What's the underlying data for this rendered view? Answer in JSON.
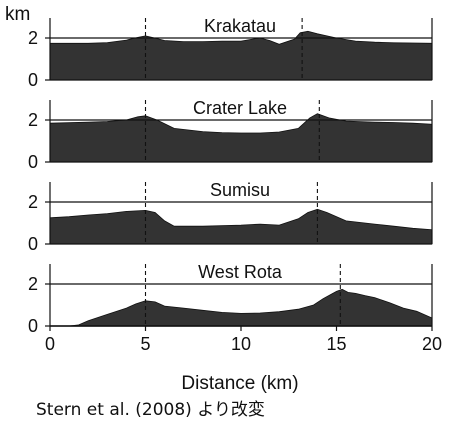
{
  "chart_data": {
    "type": "area",
    "y_unit_label": "km",
    "xlabel": "Distance (km)",
    "xlim": [
      0,
      20
    ],
    "x_ticks": [
      0,
      5,
      10,
      15,
      20
    ],
    "ylim": [
      0,
      2.6
    ],
    "y_ticks": [
      0,
      2
    ],
    "reference_level": 2,
    "fill_color": "#333333",
    "panels": [
      {
        "name": "Krakatau",
        "dashed_x": [
          5,
          13.2
        ],
        "profile": {
          "x": [
            0,
            1,
            2,
            3,
            4,
            4.6,
            5,
            5.4,
            6,
            7,
            8,
            9,
            10,
            10.6,
            11,
            11.5,
            12,
            12.8,
            13.1,
            13.5,
            14,
            15,
            16,
            17,
            18,
            19,
            20
          ],
          "y": [
            1.75,
            1.75,
            1.75,
            1.78,
            1.9,
            2.03,
            2.1,
            2.02,
            1.88,
            1.83,
            1.83,
            1.85,
            1.85,
            1.95,
            2.0,
            1.88,
            1.7,
            1.95,
            2.25,
            2.32,
            2.2,
            2.0,
            1.85,
            1.8,
            1.77,
            1.76,
            1.75
          ]
        }
      },
      {
        "name": "Crater Lake",
        "dashed_x": [
          5,
          14.1
        ],
        "profile": {
          "x": [
            0,
            1,
            2,
            3,
            4,
            4.6,
            5,
            5.6,
            6.5,
            8,
            9,
            10,
            11,
            12,
            13,
            13.6,
            14,
            14.6,
            15.5,
            17,
            18,
            19,
            20
          ],
          "y": [
            1.85,
            1.87,
            1.9,
            1.93,
            2.0,
            2.15,
            2.2,
            2.0,
            1.6,
            1.45,
            1.4,
            1.38,
            1.38,
            1.43,
            1.6,
            2.1,
            2.3,
            2.1,
            1.95,
            1.9,
            1.88,
            1.85,
            1.8
          ]
        }
      },
      {
        "name": "Sumisu",
        "dashed_x": [
          5,
          14
        ],
        "profile": {
          "x": [
            0,
            1,
            2,
            3,
            4,
            5,
            5.5,
            6,
            6.5,
            8,
            10,
            11,
            12,
            13,
            13.5,
            14,
            14.5,
            15.5,
            17,
            18,
            19,
            20
          ],
          "y": [
            1.25,
            1.3,
            1.38,
            1.45,
            1.55,
            1.6,
            1.5,
            1.1,
            0.85,
            0.85,
            0.9,
            0.95,
            0.9,
            1.2,
            1.5,
            1.65,
            1.5,
            1.1,
            0.95,
            0.85,
            0.75,
            0.68
          ]
        }
      },
      {
        "name": "West Rota",
        "dashed_x": [
          5,
          15.2
        ],
        "profile": {
          "x": [
            1,
            1.5,
            2,
            3,
            4,
            4.5,
            5,
            5.5,
            6,
            7,
            8,
            9,
            10,
            11,
            12,
            13,
            13.8,
            14.3,
            14.7,
            15,
            15.3,
            15.6,
            16,
            16.5,
            17,
            17.8,
            18.5,
            19.2,
            20
          ],
          "y": [
            0,
            0.05,
            0.25,
            0.55,
            0.85,
            1.05,
            1.2,
            1.15,
            0.95,
            0.85,
            0.75,
            0.65,
            0.6,
            0.62,
            0.68,
            0.8,
            1.0,
            1.3,
            1.5,
            1.65,
            1.75,
            1.6,
            1.55,
            1.45,
            1.35,
            1.1,
            0.85,
            0.7,
            0.38
          ]
        }
      }
    ]
  },
  "credit": "Stern et al. (2008) より改変"
}
